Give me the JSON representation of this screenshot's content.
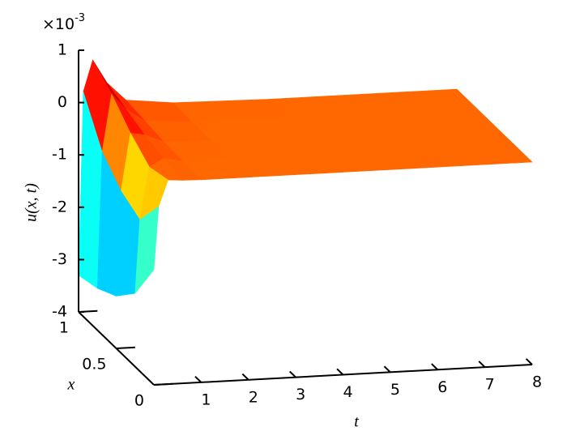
{
  "chart_data": {
    "type": "surface",
    "zlabel": "u(x, t)",
    "xlabel": "x",
    "tlabel": "t",
    "z_multiplier": {
      "base": "×10",
      "exponent": "-3"
    },
    "colormap": "jet",
    "x": [
      0,
      0.25,
      0.5,
      0.75,
      1
    ],
    "t": [
      0,
      0.1,
      0.3,
      0.6,
      1,
      2,
      4,
      6,
      8
    ],
    "z": [
      [
        -1.8,
        -0.6,
        -0.1,
        -0.12,
        -0.13,
        -0.13,
        -0.13,
        -0.13,
        -0.13
      ],
      [
        -2.6,
        -1.2,
        -0.2,
        -0.05,
        -0.12,
        -0.13,
        -0.13,
        -0.13,
        -0.13
      ],
      [
        -3.0,
        -1.0,
        0.1,
        0.05,
        -0.1,
        -0.13,
        -0.13,
        -0.13,
        -0.13
      ],
      [
        -3.2,
        -0.6,
        0.5,
        0.2,
        -0.05,
        -0.12,
        -0.13,
        -0.13,
        -0.13
      ],
      [
        -3.3,
        0.2,
        0.8,
        0.35,
        0.0,
        -0.1,
        -0.13,
        -0.13,
        -0.13
      ]
    ],
    "zlim": [
      -4,
      1
    ],
    "zticks": [
      1,
      0,
      -1,
      -2,
      -3,
      -4
    ],
    "xlim": [
      0,
      1
    ],
    "xticks": [
      0,
      0.5,
      1
    ],
    "tlim": [
      0,
      8
    ],
    "tticks": [
      1,
      2,
      3,
      4,
      5,
      6,
      7,
      8
    ]
  }
}
